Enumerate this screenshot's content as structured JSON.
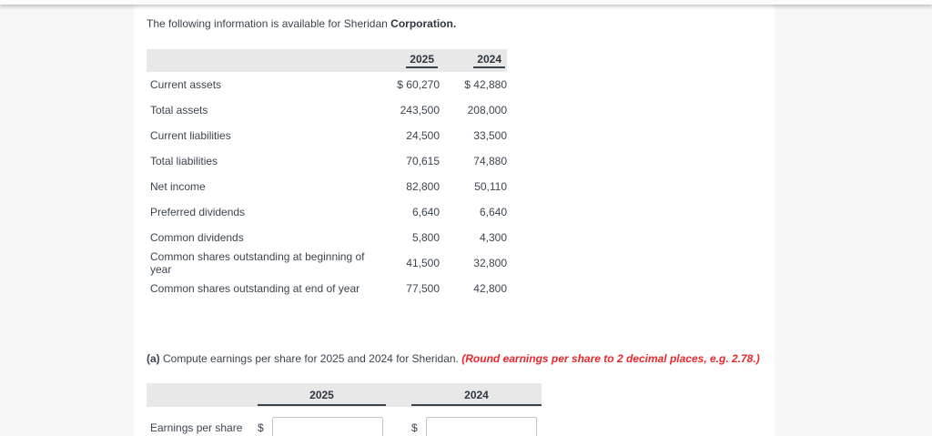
{
  "intro": {
    "text": "The following information is available for Sheridan",
    "bold": "Corporation."
  },
  "data_table": {
    "headers": {
      "col1": "2025",
      "col2": "2024"
    },
    "rows": [
      {
        "label": "Current assets",
        "v2025": "$ 60,270",
        "v2024": "$ 42,880"
      },
      {
        "label": "Total assets",
        "v2025": "243,500",
        "v2024": "208,000"
      },
      {
        "label": "Current liabilities",
        "v2025": "24,500",
        "v2024": "33,500"
      },
      {
        "label": "Total liabilities",
        "v2025": "70,615",
        "v2024": "74,880"
      },
      {
        "label": "Net income",
        "v2025": "82,800",
        "v2024": "50,110"
      },
      {
        "label": "Preferred dividends",
        "v2025": "6,640",
        "v2024": "6,640"
      },
      {
        "label": "Common dividends",
        "v2025": "5,800",
        "v2024": "4,300"
      },
      {
        "label": "Common shares outstanding at beginning of year",
        "v2025": "41,500",
        "v2024": "32,800"
      },
      {
        "label": "Common shares outstanding at end of year",
        "v2025": "77,500",
        "v2024": "42,800"
      }
    ]
  },
  "question": {
    "part": "(a)",
    "text": "Compute earnings per share for 2025 and 2024 for Sheridan.",
    "note": "(Round earnings per share to 2 decimal places, e.g. 2.78.)"
  },
  "answer_table": {
    "headers": {
      "col1": "2025",
      "col2": "2024"
    },
    "row_label": "Earnings per share",
    "currency": "$",
    "inputs": {
      "eps_2025": {
        "value": "",
        "placeholder": ""
      },
      "eps_2024": {
        "value": "",
        "placeholder": ""
      }
    }
  },
  "colors": {
    "accent_red": "#e8262c",
    "table_header_bg": "#e8e8e8",
    "text": "#3b4550"
  }
}
